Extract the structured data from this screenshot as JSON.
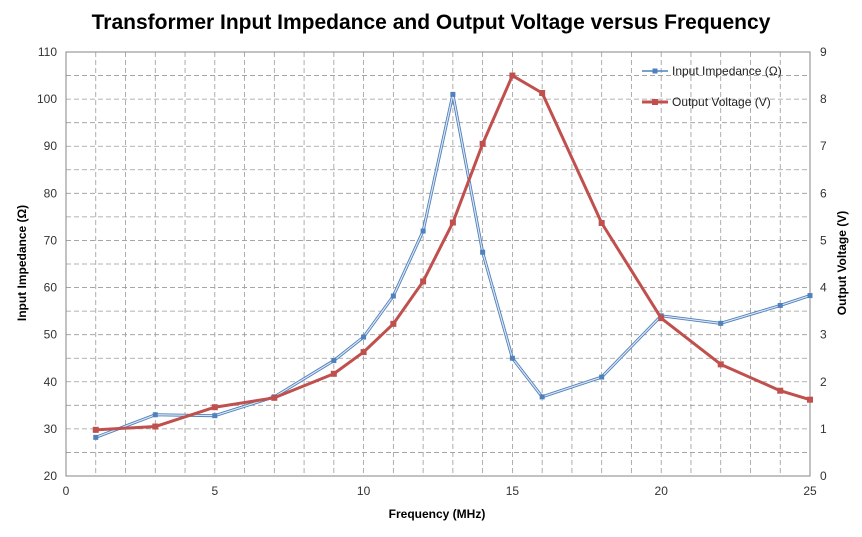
{
  "chart_data": {
    "type": "line",
    "title": "Transformer Input Impedance and Output Voltage versus Frequency",
    "xlabel": "Frequency (MHz)",
    "ylabel_left": "Input Impedance (Ω)",
    "ylabel_right": "Output Voltage (V)",
    "xlim": [
      0,
      25
    ],
    "ylim_left": [
      20,
      110
    ],
    "ylim_right": [
      0,
      9
    ],
    "x_ticks": [
      0,
      5,
      10,
      15,
      20,
      25
    ],
    "y_left_ticks": [
      20,
      30,
      40,
      50,
      60,
      70,
      80,
      90,
      100,
      110
    ],
    "y_right_ticks": [
      0,
      1,
      2,
      3,
      4,
      5,
      6,
      7,
      8,
      9
    ],
    "grid": true,
    "legend_position": "top-right",
    "series": [
      {
        "name": "Input Impedance (Ω)",
        "axis": "left",
        "color": "#4f81bd",
        "marker": "square",
        "x": [
          1,
          3,
          5,
          7,
          9,
          10,
          11,
          12,
          13,
          14,
          15,
          16,
          18,
          20,
          22,
          24,
          25
        ],
        "y": [
          28.2,
          33.0,
          32.8,
          36.8,
          44.5,
          49.5,
          58.2,
          72.0,
          101.0,
          67.5,
          45.0,
          36.8,
          41.0,
          54.0,
          52.4,
          56.2,
          58.3
        ]
      },
      {
        "name": "Output Voltage (V)",
        "axis": "right",
        "color": "#c0504d",
        "marker": "square",
        "x": [
          1,
          3,
          5,
          7,
          9,
          10,
          11,
          12,
          13,
          14,
          15,
          16,
          18,
          20,
          22,
          24,
          25
        ],
        "y": [
          0.98,
          1.05,
          1.46,
          1.66,
          2.17,
          2.63,
          3.23,
          4.13,
          5.38,
          7.05,
          8.5,
          8.13,
          5.37,
          3.35,
          2.37,
          1.81,
          1.62
        ]
      }
    ]
  }
}
